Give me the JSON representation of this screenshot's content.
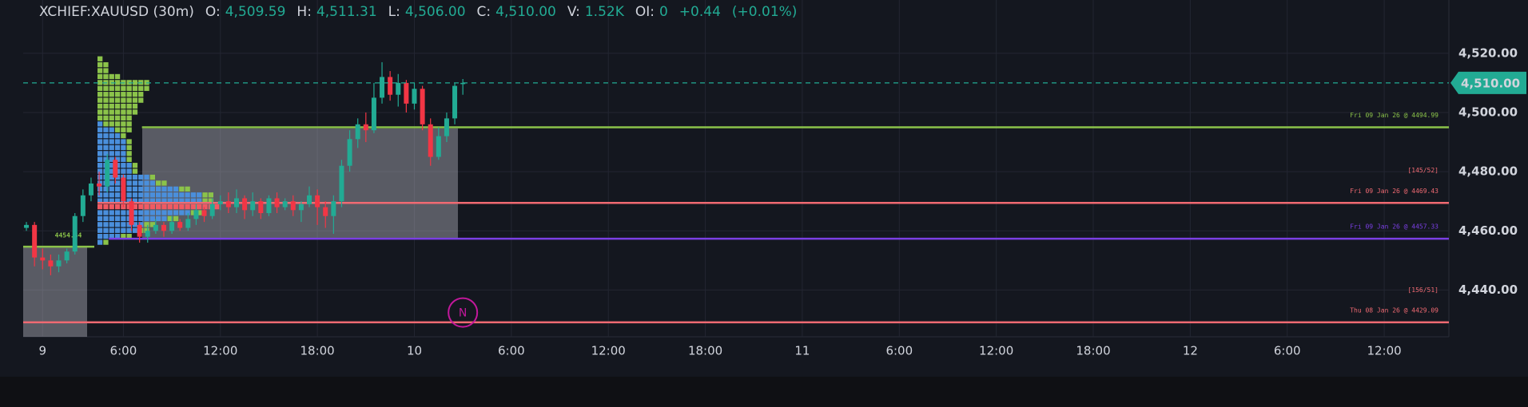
{
  "chart_data": {
    "type": "candlestick",
    "title": "XCHIEF:XAUUSD (30m)",
    "legend_fields": [
      {
        "name": "O:",
        "value": {
          "value": 4509.59,
          "label": "4,509.59"
        }
      },
      {
        "name": "H:",
        "value": {
          "value": 4511.31,
          "label": "4,511.31"
        }
      },
      {
        "name": "L:",
        "value": {
          "value": 4506.0,
          "label": "4,506.00"
        }
      },
      {
        "name": "C:",
        "value": {
          "value": 4510.0,
          "label": "4,510.00"
        }
      },
      {
        "name": "V:",
        "value": {
          "value": 1520,
          "label": "1.52K"
        }
      },
      {
        "name": "OI:",
        "value": 0
      }
    ],
    "change": {
      "value": 0.44,
      "label": "+0.44"
    },
    "change_pct": {
      "value": 0.01,
      "label": "(+0.01%)"
    },
    "up_color": "#22ab94",
    "down_color": "#f23645",
    "xlim": [
      -0.2,
      88.0
    ],
    "ylim": [
      4424.2,
      4536.4
    ],
    "xticks": [
      {
        "value": 1,
        "label": "9"
      },
      {
        "value": 6,
        "label": "6:00"
      },
      {
        "value": 12,
        "label": "12:00"
      },
      {
        "value": 18,
        "label": "18:00"
      },
      {
        "value": 24,
        "label": "10"
      },
      {
        "value": 30,
        "label": "6:00"
      },
      {
        "value": 36,
        "label": "12:00"
      },
      {
        "value": 42,
        "label": "18:00"
      },
      {
        "value": 48,
        "label": "11"
      },
      {
        "value": 54,
        "label": "6:00"
      },
      {
        "value": 60,
        "label": "12:00"
      },
      {
        "value": 66,
        "label": "18:00"
      },
      {
        "value": 72,
        "label": "12"
      },
      {
        "value": 78,
        "label": "6:00"
      },
      {
        "value": 84,
        "label": "12:00"
      }
    ],
    "yticks": [
      {
        "value": 4520,
        "label": "4,520.00"
      },
      {
        "value": 4500,
        "label": "4,500.00"
      },
      {
        "value": 4480,
        "label": "4,480.00"
      },
      {
        "value": 4460,
        "label": "4,460.00"
      },
      {
        "value": 4440,
        "label": "4,440.00"
      }
    ],
    "grid": true,
    "x": [
      0,
      0.5,
      1,
      1.5,
      2,
      2.5,
      3,
      3.5,
      4,
      4.5,
      5,
      5.5,
      6,
      6.5,
      7,
      7.5,
      8,
      8.5,
      9,
      9.5,
      10,
      10.5,
      11,
      11.5,
      12,
      12.5,
      13,
      13.5,
      14,
      14.5,
      15,
      15.5,
      16,
      16.5,
      17,
      17.5,
      18,
      18.5,
      19,
      19.5,
      20,
      20.5,
      21,
      21.5,
      22,
      22.5,
      23,
      23.5,
      24,
      24.5,
      25,
      25.5,
      26,
      26.5,
      27
    ],
    "open": [
      4461,
      4462,
      4451,
      4450,
      4448,
      4450,
      4453,
      4465,
      4472,
      4476,
      4475,
      4484,
      4478,
      4470,
      4462,
      4458,
      4460,
      4462,
      4460,
      4463,
      4461,
      4464,
      4467,
      4465,
      4469,
      4470,
      4468,
      4471,
      4467,
      4470,
      4466,
      4471,
      4468,
      4470,
      4467,
      4469,
      4472,
      4468,
      4465,
      4470,
      4482,
      4491,
      4496,
      4494,
      4505,
      4512,
      4506,
      4510,
      4503,
      4508,
      4496,
      4485,
      4492,
      4498,
      4509.59
    ],
    "high": [
      4463,
      4463,
      4454,
      4452,
      4452,
      4454,
      4466,
      4474,
      4478,
      4480,
      4486,
      4485,
      4479,
      4471,
      4463,
      4462,
      4464,
      4463,
      4465,
      4464,
      4466,
      4469,
      4468,
      4471,
      4472,
      4473,
      4474,
      4472,
      4473,
      4471,
      4472,
      4473,
      4471,
      4472,
      4470,
      4475,
      4474,
      4470,
      4472,
      4484,
      4494,
      4498,
      4500,
      4510,
      4517,
      4514,
      4513,
      4511,
      4510,
      4509,
      4498,
      4495,
      4500,
      4510,
      4511.31
    ],
    "low": [
      4460,
      4448,
      4447,
      4445,
      4446,
      4449,
      4452,
      4463,
      4470,
      4472,
      4473,
      4476,
      4468,
      4460,
      4456,
      4456,
      4459,
      4458,
      4459,
      4460,
      4460,
      4462,
      4463,
      4464,
      4467,
      4466,
      4466,
      4464,
      4465,
      4464,
      4465,
      4466,
      4467,
      4465,
      4463,
      4468,
      4462,
      4461,
      4459,
      4468,
      4480,
      4488,
      4490,
      4493,
      4503,
      4504,
      4502,
      4500,
      4501,
      4494,
      4482,
      4484,
      4490,
      4496,
      4506.0
    ],
    "close": [
      4462,
      4451,
      4450,
      4448,
      4450,
      4453,
      4465,
      4472,
      4476,
      4475,
      4484,
      4478,
      4470,
      4462,
      4458,
      4460,
      4462,
      4460,
      4463,
      4461,
      4464,
      4467,
      4465,
      4469,
      4470,
      4468,
      4471,
      4467,
      4470,
      4466,
      4471,
      4468,
      4470,
      4467,
      4469,
      4472,
      4468,
      4465,
      4470,
      4482,
      4491,
      4496,
      4494,
      4505,
      4512,
      4506,
      4510,
      4503,
      4508,
      4496,
      4485,
      4492,
      4498,
      4509,
      4510.0
    ],
    "current_price": {
      "value": 4510,
      "label": "4,510.00",
      "color": "#22ab94"
    },
    "profile": {
      "levels": [
        4518,
        4516,
        4514,
        4512,
        4510,
        4508,
        4506,
        4504,
        4502,
        4500,
        4498,
        4496,
        4494,
        4492,
        4490,
        4488,
        4486,
        4484,
        4482,
        4480,
        4478,
        4476,
        4474,
        4472,
        4470,
        4468,
        4466,
        4464,
        4462,
        4460,
        4458,
        4456
      ],
      "blue": [
        0,
        0,
        0,
        0,
        0,
        0,
        0,
        0,
        0,
        0,
        0,
        1,
        3,
        4,
        5,
        5,
        5,
        5,
        6,
        6,
        9,
        10,
        14,
        18,
        18,
        18,
        16,
        12,
        8,
        7,
        4,
        1
      ],
      "green": [
        1,
        2,
        2,
        4,
        9,
        9,
        8,
        8,
        7,
        7,
        6,
        5,
        3,
        1,
        1,
        1,
        1,
        1,
        1,
        1,
        1,
        2,
        2,
        2,
        2,
        3,
        2,
        2,
        2,
        2,
        2,
        1
      ],
      "poc": 4468,
      "blue_color": "#4a8fdc",
      "green_color": "#8bc34a",
      "poc_color": "#f05a63"
    },
    "levels": [
      {
        "value": 4494.99,
        "label": "Fri 09 Jan 26 @ 4494.99",
        "color": "#8bc34a",
        "start": 7.15
      },
      {
        "value": 4469.43,
        "label": "Fri 09 Jan 26 @ 4469.43",
        "color": "#f06a72",
        "start": 4.4
      },
      {
        "value": 4457.33,
        "label": "Fri 09 Jan 26 @ 4457.33",
        "color": "#7b3fe4",
        "start": 5.1
      },
      {
        "value": 4429.09,
        "label": "Thu 08 Jan 26 @ 4429.09",
        "color": "#f06a72",
        "start": -0.2
      },
      {
        "value": 4454.64,
        "label": "4454.64",
        "color": "#8bc34a",
        "start": -0.2,
        "end": 4.2
      }
    ],
    "annotations": [
      {
        "text": "[145/52]",
        "y": 4480.5,
        "color": "#f06a72"
      },
      {
        "text": "[156/51]",
        "y": 4440,
        "color": "#f06a72"
      }
    ],
    "marker": {
      "label": "N",
      "x": 27,
      "y": 4432.4,
      "color": "#c2189b"
    }
  }
}
